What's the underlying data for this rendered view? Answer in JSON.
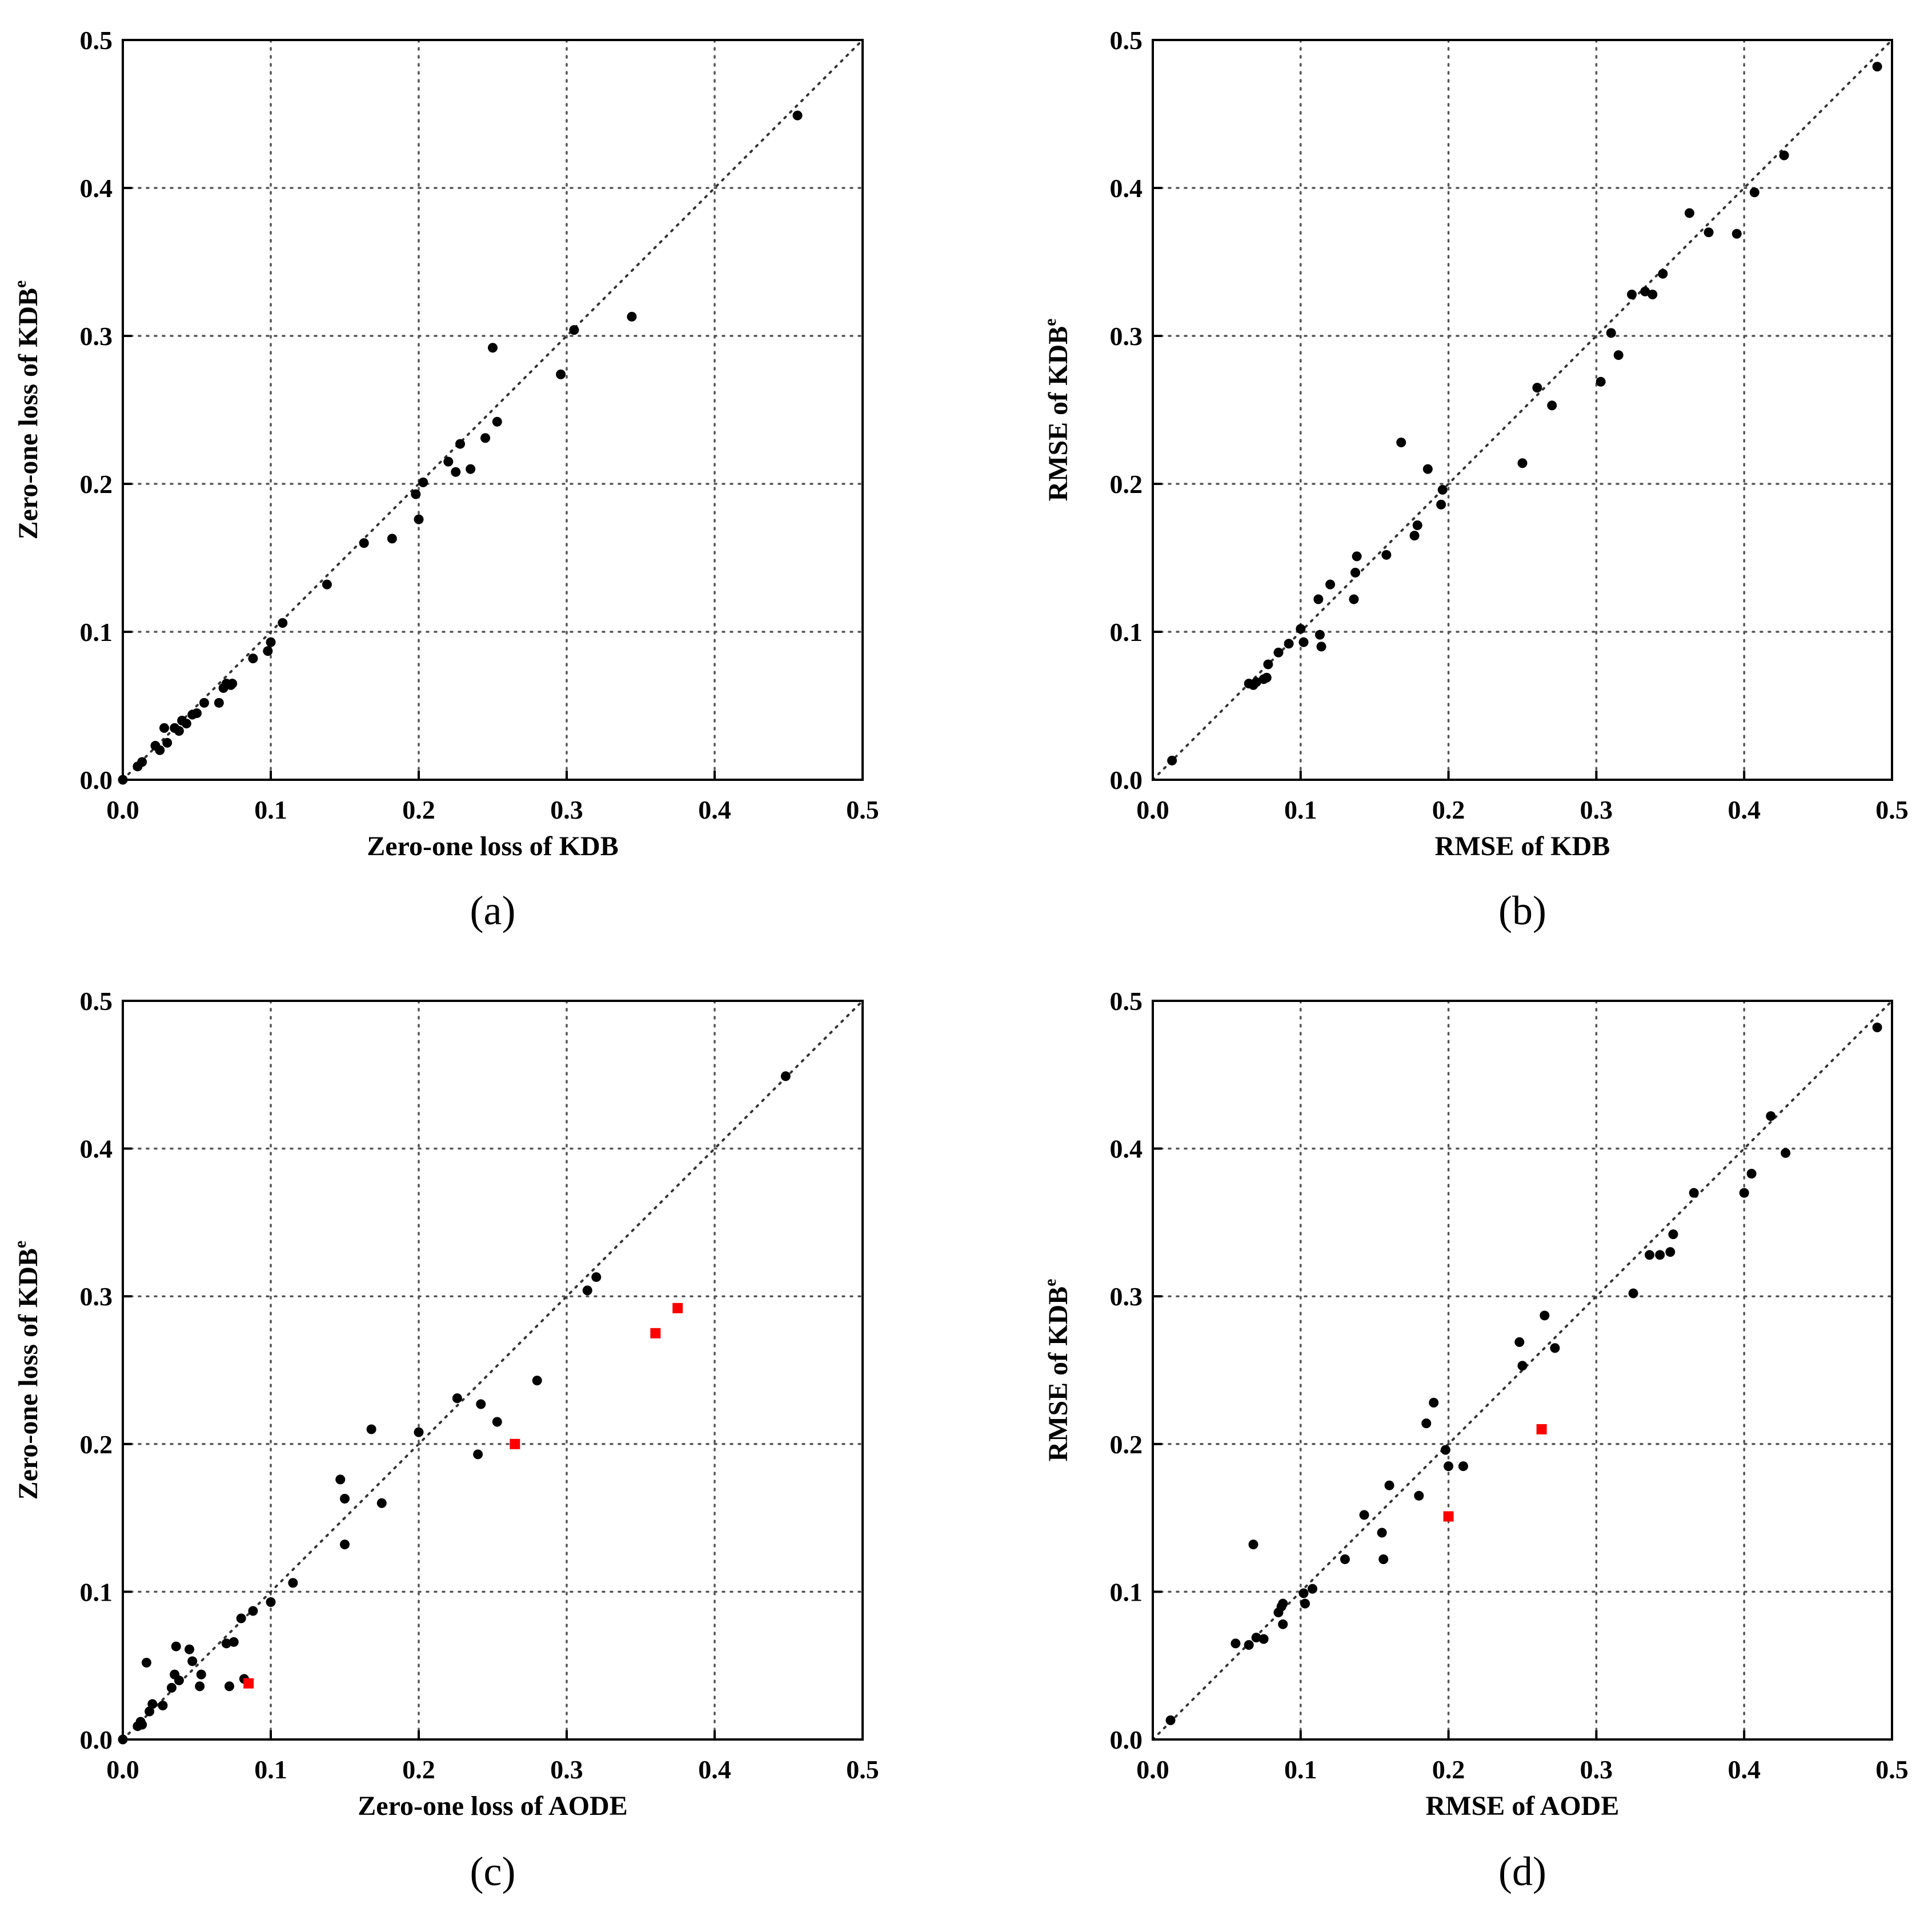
{
  "chart_data": [
    {
      "type": "scatter",
      "caption": "(a)",
      "xlabel": "Zero-one loss of KDB",
      "ylabel_main": "Zero-one loss of KDB",
      "ylabel_sup": "e",
      "xlim": [
        0,
        0.5
      ],
      "ylim": [
        0,
        0.5
      ],
      "xticks": [
        "0.0",
        "0.1",
        "0.2",
        "0.3",
        "0.4",
        "0.5"
      ],
      "yticks": [
        "0.0",
        "0.1",
        "0.2",
        "0.3",
        "0.4",
        "0.5"
      ],
      "grid": true,
      "diagonal": true,
      "colors": {
        "points": "#000000"
      },
      "points": [
        [
          0.0,
          0.0
        ],
        [
          0.01,
          0.009
        ],
        [
          0.013,
          0.012
        ],
        [
          0.022,
          0.023
        ],
        [
          0.025,
          0.02
        ],
        [
          0.028,
          0.035
        ],
        [
          0.03,
          0.025
        ],
        [
          0.035,
          0.035
        ],
        [
          0.038,
          0.033
        ],
        [
          0.04,
          0.04
        ],
        [
          0.043,
          0.038
        ],
        [
          0.047,
          0.044
        ],
        [
          0.05,
          0.045
        ],
        [
          0.055,
          0.052
        ],
        [
          0.065,
          0.052
        ],
        [
          0.068,
          0.062
        ],
        [
          0.07,
          0.065
        ],
        [
          0.073,
          0.064
        ],
        [
          0.074,
          0.065
        ],
        [
          0.088,
          0.082
        ],
        [
          0.098,
          0.087
        ],
        [
          0.1,
          0.093
        ],
        [
          0.108,
          0.106
        ],
        [
          0.138,
          0.132
        ],
        [
          0.163,
          0.16
        ],
        [
          0.182,
          0.163
        ],
        [
          0.198,
          0.193
        ],
        [
          0.2,
          0.176
        ],
        [
          0.203,
          0.201
        ],
        [
          0.22,
          0.215
        ],
        [
          0.225,
          0.208
        ],
        [
          0.228,
          0.227
        ],
        [
          0.235,
          0.21
        ],
        [
          0.245,
          0.231
        ],
        [
          0.25,
          0.292
        ],
        [
          0.253,
          0.242
        ],
        [
          0.296,
          0.274
        ],
        [
          0.305,
          0.304
        ],
        [
          0.344,
          0.313
        ],
        [
          0.456,
          0.449
        ]
      ],
      "highlight_points": []
    },
    {
      "type": "scatter",
      "caption": "(b)",
      "xlabel": "RMSE of KDB",
      "ylabel_main": "RMSE of KDB",
      "ylabel_sup": "e",
      "xlim": [
        0,
        0.5
      ],
      "ylim": [
        0,
        0.5
      ],
      "xticks": [
        "0.0",
        "0.1",
        "0.2",
        "0.3",
        "0.4",
        "0.5"
      ],
      "yticks": [
        "0.0",
        "0.1",
        "0.2",
        "0.3",
        "0.4",
        "0.5"
      ],
      "grid": true,
      "diagonal": true,
      "colors": {
        "points": "#000000"
      },
      "points": [
        [
          0.013,
          0.013
        ],
        [
          0.065,
          0.065
        ],
        [
          0.068,
          0.064
        ],
        [
          0.07,
          0.066
        ],
        [
          0.075,
          0.068
        ],
        [
          0.077,
          0.069
        ],
        [
          0.078,
          0.078
        ],
        [
          0.085,
          0.086
        ],
        [
          0.092,
          0.092
        ],
        [
          0.1,
          0.102
        ],
        [
          0.102,
          0.093
        ],
        [
          0.112,
          0.122
        ],
        [
          0.113,
          0.098
        ],
        [
          0.114,
          0.09
        ],
        [
          0.12,
          0.132
        ],
        [
          0.136,
          0.122
        ],
        [
          0.137,
          0.14
        ],
        [
          0.138,
          0.151
        ],
        [
          0.158,
          0.152
        ],
        [
          0.168,
          0.228
        ],
        [
          0.177,
          0.165
        ],
        [
          0.179,
          0.172
        ],
        [
          0.186,
          0.21
        ],
        [
          0.195,
          0.186
        ],
        [
          0.196,
          0.196
        ],
        [
          0.25,
          0.214
        ],
        [
          0.26,
          0.265
        ],
        [
          0.27,
          0.253
        ],
        [
          0.303,
          0.269
        ],
        [
          0.31,
          0.302
        ],
        [
          0.315,
          0.287
        ],
        [
          0.324,
          0.328
        ],
        [
          0.333,
          0.33
        ],
        [
          0.338,
          0.328
        ],
        [
          0.345,
          0.342
        ],
        [
          0.363,
          0.383
        ],
        [
          0.376,
          0.37
        ],
        [
          0.395,
          0.369
        ],
        [
          0.407,
          0.397
        ],
        [
          0.427,
          0.422
        ],
        [
          0.49,
          0.482
        ]
      ],
      "highlight_points": []
    },
    {
      "type": "scatter",
      "caption": "(c)",
      "xlabel": "Zero-one loss of AODE",
      "ylabel_main": "Zero-one loss of KDB",
      "ylabel_sup": "e",
      "xlim": [
        0,
        0.5
      ],
      "ylim": [
        0,
        0.5
      ],
      "xticks": [
        "0.0",
        "0.1",
        "0.2",
        "0.3",
        "0.4",
        "0.5"
      ],
      "yticks": [
        "0.0",
        "0.1",
        "0.2",
        "0.3",
        "0.4",
        "0.5"
      ],
      "grid": true,
      "diagonal": true,
      "colors": {
        "points": "#000000",
        "highlight": "#ff0000"
      },
      "points": [
        [
          0.0,
          0.0
        ],
        [
          0.01,
          0.009
        ],
        [
          0.012,
          0.012
        ],
        [
          0.013,
          0.01
        ],
        [
          0.016,
          0.052
        ],
        [
          0.018,
          0.019
        ],
        [
          0.02,
          0.024
        ],
        [
          0.027,
          0.023
        ],
        [
          0.033,
          0.035
        ],
        [
          0.035,
          0.044
        ],
        [
          0.036,
          0.063
        ],
        [
          0.038,
          0.04
        ],
        [
          0.045,
          0.061
        ],
        [
          0.047,
          0.053
        ],
        [
          0.052,
          0.036
        ],
        [
          0.053,
          0.044
        ],
        [
          0.07,
          0.065
        ],
        [
          0.072,
          0.036
        ],
        [
          0.075,
          0.066
        ],
        [
          0.08,
          0.082
        ],
        [
          0.082,
          0.041
        ],
        [
          0.088,
          0.087
        ],
        [
          0.1,
          0.093
        ],
        [
          0.115,
          0.106
        ],
        [
          0.147,
          0.176
        ],
        [
          0.15,
          0.132
        ],
        [
          0.15,
          0.163
        ],
        [
          0.168,
          0.21
        ],
        [
          0.175,
          0.16
        ],
        [
          0.2,
          0.208
        ],
        [
          0.226,
          0.231
        ],
        [
          0.24,
          0.193
        ],
        [
          0.242,
          0.227
        ],
        [
          0.253,
          0.215
        ],
        [
          0.28,
          0.243
        ],
        [
          0.314,
          0.304
        ],
        [
          0.32,
          0.313
        ],
        [
          0.448,
          0.449
        ]
      ],
      "highlight_points": [
        [
          0.085,
          0.038
        ],
        [
          0.265,
          0.2
        ],
        [
          0.36,
          0.275
        ],
        [
          0.375,
          0.292
        ]
      ]
    },
    {
      "type": "scatter",
      "caption": "(d)",
      "xlabel": "RMSE of AODE",
      "ylabel_main": "RMSE of KDB",
      "ylabel_sup": "e",
      "xlim": [
        0,
        0.5
      ],
      "ylim": [
        0,
        0.5
      ],
      "xticks": [
        "0.0",
        "0.1",
        "0.2",
        "0.3",
        "0.4",
        "0.5"
      ],
      "yticks": [
        "0.0",
        "0.1",
        "0.2",
        "0.3",
        "0.4",
        "0.5"
      ],
      "grid": true,
      "diagonal": true,
      "colors": {
        "points": "#000000",
        "highlight": "#ff0000"
      },
      "points": [
        [
          0.012,
          0.013
        ],
        [
          0.056,
          0.065
        ],
        [
          0.065,
          0.064
        ],
        [
          0.068,
          0.132
        ],
        [
          0.07,
          0.069
        ],
        [
          0.075,
          0.068
        ],
        [
          0.085,
          0.086
        ],
        [
          0.087,
          0.09
        ],
        [
          0.088,
          0.092
        ],
        [
          0.088,
          0.078
        ],
        [
          0.102,
          0.099
        ],
        [
          0.103,
          0.092
        ],
        [
          0.108,
          0.102
        ],
        [
          0.13,
          0.122
        ],
        [
          0.143,
          0.152
        ],
        [
          0.155,
          0.14
        ],
        [
          0.156,
          0.122
        ],
        [
          0.16,
          0.172
        ],
        [
          0.18,
          0.165
        ],
        [
          0.185,
          0.214
        ],
        [
          0.19,
          0.228
        ],
        [
          0.198,
          0.196
        ],
        [
          0.2,
          0.185
        ],
        [
          0.21,
          0.185
        ],
        [
          0.248,
          0.269
        ],
        [
          0.25,
          0.253
        ],
        [
          0.265,
          0.287
        ],
        [
          0.272,
          0.265
        ],
        [
          0.325,
          0.302
        ],
        [
          0.336,
          0.328
        ],
        [
          0.343,
          0.328
        ],
        [
          0.35,
          0.33
        ],
        [
          0.352,
          0.342
        ],
        [
          0.366,
          0.37
        ],
        [
          0.4,
          0.37
        ],
        [
          0.405,
          0.383
        ],
        [
          0.418,
          0.422
        ],
        [
          0.428,
          0.397
        ],
        [
          0.49,
          0.482
        ]
      ],
      "highlight_points": [
        [
          0.2,
          0.151
        ],
        [
          0.263,
          0.21
        ]
      ]
    }
  ]
}
